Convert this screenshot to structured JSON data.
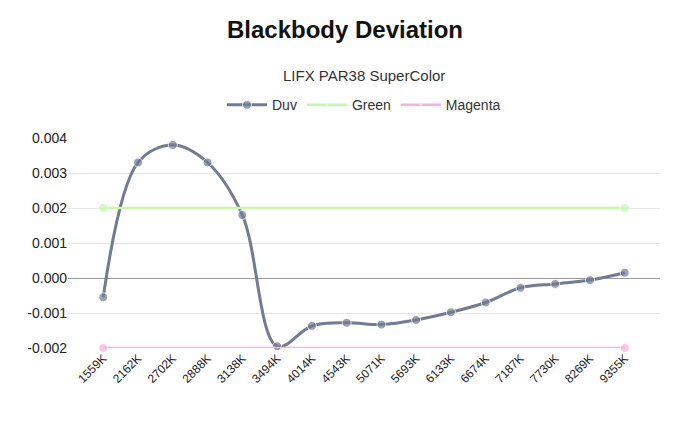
{
  "chart_data": {
    "type": "line",
    "title": "Blackbody Deviation",
    "subtitle": "LIFX PAR38 SuperColor",
    "categories": [
      "1559K",
      "2162K",
      "2702K",
      "2888K",
      "3138K",
      "3494K",
      "4014K",
      "4543K",
      "5071K",
      "5693K",
      "6133K",
      "6674K",
      "7187K",
      "7730K",
      "8269K",
      "9355K"
    ],
    "series": [
      {
        "name": "Duv",
        "color": "#717b91",
        "marker": "circle",
        "line_style": "solid",
        "values": [
          -0.00055,
          0.0033,
          0.0038,
          0.0033,
          0.0018,
          -0.00195,
          -0.00137,
          -0.00128,
          -0.00133,
          -0.0012,
          -0.00098,
          -0.0007,
          -0.00028,
          -0.00017,
          -6e-05,
          0.00015
        ]
      },
      {
        "name": "Green",
        "color": "#c6f7ab",
        "marker": "circle",
        "line_style": "solid",
        "values": [
          0.002,
          0.002,
          0.002,
          0.002,
          0.002,
          0.002,
          0.002,
          0.002,
          0.002,
          0.002,
          0.002,
          0.002,
          0.002,
          0.002,
          0.002,
          0.002
        ]
      },
      {
        "name": "Magenta",
        "color": "#f8afe2",
        "marker": "circle",
        "line_style": "solid",
        "values": [
          -0.002,
          -0.002,
          -0.002,
          -0.002,
          -0.002,
          -0.002,
          -0.002,
          -0.002,
          -0.002,
          -0.002,
          -0.002,
          -0.002,
          -0.002,
          -0.002,
          -0.002,
          -0.002
        ]
      }
    ],
    "ylim": [
      -0.002,
      0.004
    ],
    "yticks": [
      -0.002,
      -0.001,
      {
        "value": 0,
        "label": "0.000"
      },
      0.001,
      0.002,
      0.003,
      0.004
    ],
    "grid": true,
    "legend": "top"
  }
}
